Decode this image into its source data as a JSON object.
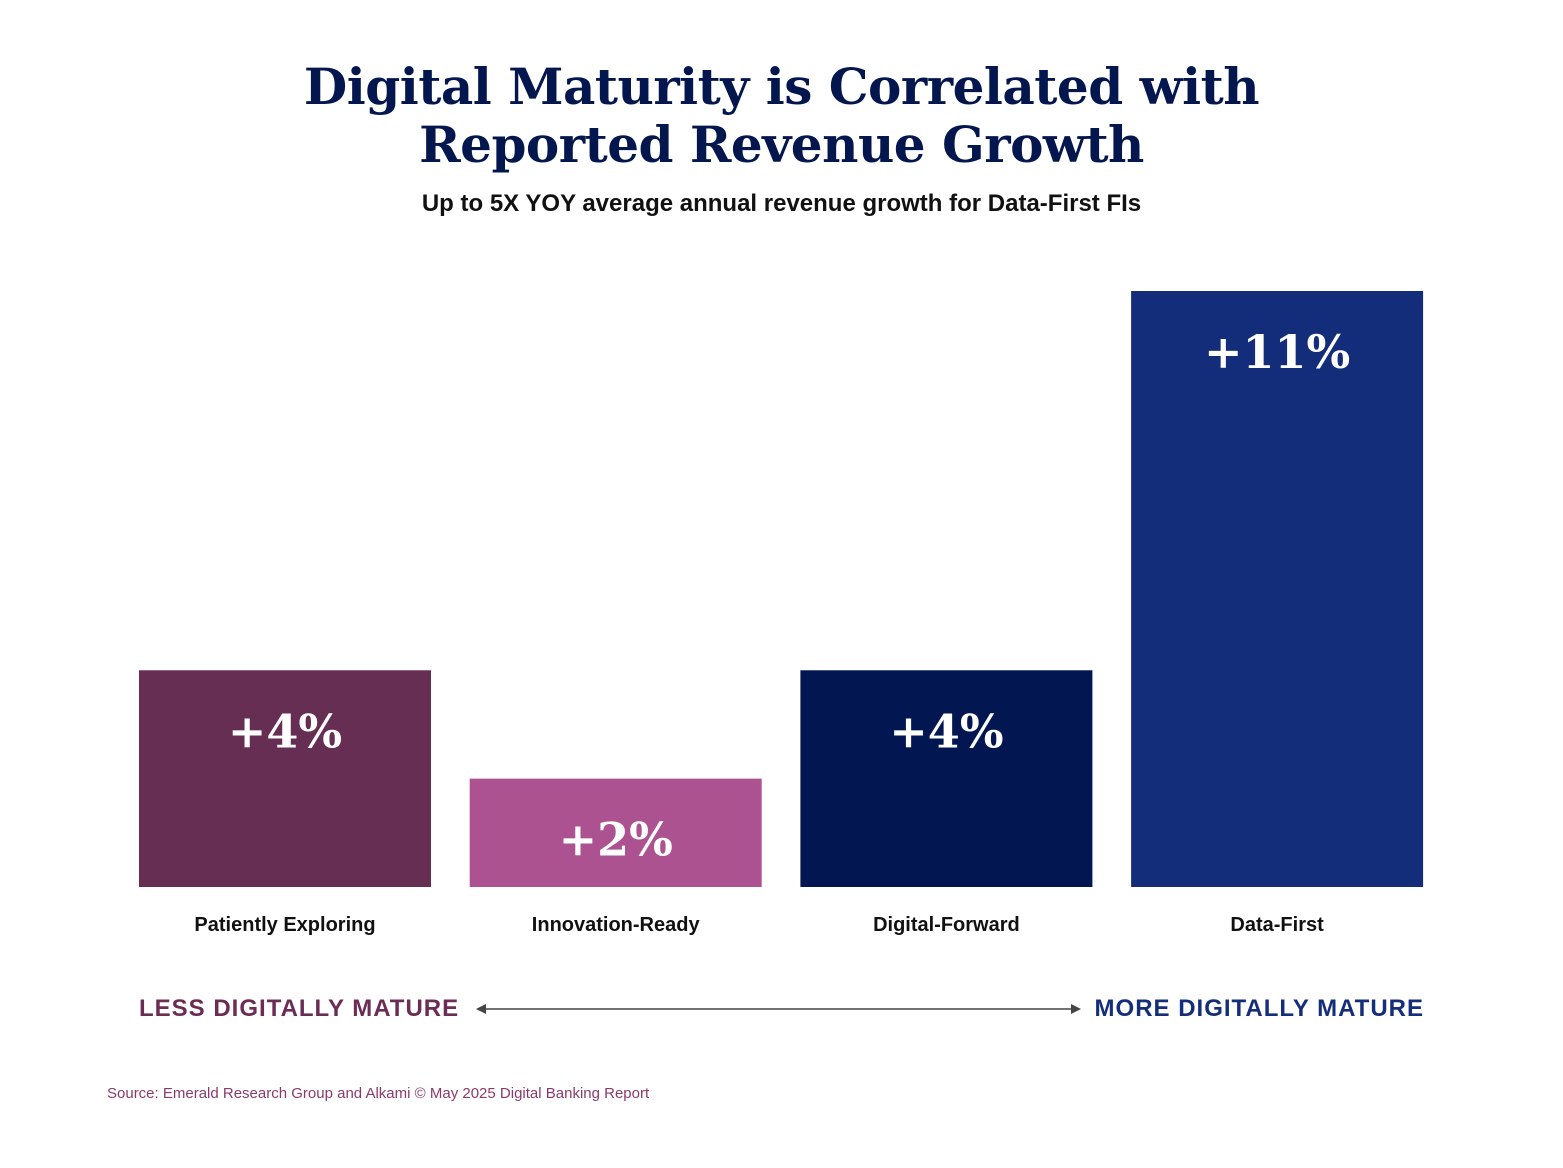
{
  "title_lines": [
    "Digital Maturity is Correlated with",
    "Reported Revenue Growth"
  ],
  "subtitle": "Up to 5X YOY average annual revenue growth for Data-First FIs",
  "chart_data": {
    "type": "bar",
    "title": "Digital Maturity is Correlated with Reported Revenue Growth",
    "subtitle": "Up to 5X YOY average annual revenue growth for Data-First FIs",
    "xlabel": "",
    "ylabel": "",
    "ylim": [
      0,
      11
    ],
    "categories": [
      "Patiently Exploring",
      "Innovation-Ready",
      "Digital-Forward",
      "Data-First"
    ],
    "values": [
      4,
      2,
      4,
      11
    ],
    "value_labels": [
      "+4%",
      "+2%",
      "+4%",
      "+11%"
    ],
    "colors": [
      "#672e53",
      "#ad5290",
      "#021652",
      "#142d7a"
    ],
    "grid": false
  },
  "scale": {
    "left_label": "LESS DIGITALLY MATURE",
    "right_label": "MORE DIGITALLY MATURE",
    "left_color": "#6b2d55",
    "right_color": "#152e7a",
    "arrow_color": "#444444"
  },
  "source": "Source: Emerald Research Group and Alkami © May 2025 Digital Banking Report"
}
